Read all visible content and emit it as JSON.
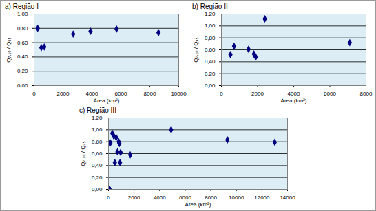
{
  "chart_data": [
    {
      "type": "scatter",
      "title": "a) Região I",
      "xlabel": "Área (km²)",
      "ylabel": "Q₇,₁₀ / Q₉₅",
      "x": [
        250,
        500,
        700,
        2700,
        3900,
        5700,
        8600
      ],
      "values": [
        0.8,
        0.53,
        0.54,
        0.72,
        0.76,
        0.79,
        0.74
      ],
      "color": "#000080",
      "marker": "diamond",
      "grid": "y",
      "xlim": [
        0,
        10000
      ],
      "xticks": [
        0,
        2000,
        4000,
        6000,
        8000,
        10000
      ],
      "ylim": [
        0,
        1
      ],
      "yticks": [
        {
          "value": 0,
          "label": "0,00"
        },
        {
          "value": 0.2,
          "label": "0,20"
        },
        {
          "value": 0.4,
          "label": "0,40"
        },
        {
          "value": 0.6,
          "label": "0,60"
        },
        {
          "value": 0.8,
          "label": "0,80"
        },
        {
          "value": 1,
          "label": "1,00"
        }
      ]
    },
    {
      "type": "scatter",
      "title": "b) Região II",
      "xlabel": "Área (km²)",
      "ylabel": "Q₇,₁₀ / Q₉₅",
      "x": [
        500,
        700,
        1500,
        1800,
        1900,
        2400,
        7100
      ],
      "values": [
        0.52,
        0.66,
        0.61,
        0.53,
        0.48,
        1.12,
        0.72
      ],
      "color": "#000080",
      "marker": "diamond",
      "grid": "y",
      "xlim": [
        0,
        8000
      ],
      "xticks": [
        0,
        2000,
        4000,
        6000,
        8000
      ],
      "ylim": [
        0,
        1.2
      ],
      "yticks": [
        {
          "value": 0,
          "label": "0,00"
        },
        {
          "value": 0.2,
          "label": "0,20"
        },
        {
          "value": 0.4,
          "label": "0,40"
        },
        {
          "value": 0.6,
          "label": "0,60"
        },
        {
          "value": 0.8,
          "label": "0,80"
        },
        {
          "value": 1,
          "label": "1,00"
        },
        {
          "value": 1.2,
          "label": "1,20"
        }
      ]
    },
    {
      "type": "scatter",
      "title": "c) Região III",
      "xlabel": "Área (km²)",
      "ylabel": "Q₇,₁₀ / Q₉₅",
      "x": [
        100,
        150,
        300,
        400,
        500,
        600,
        700,
        800,
        850,
        900,
        950,
        1700,
        4900,
        9300,
        13000
      ],
      "values": [
        0.0,
        0.78,
        0.94,
        0.9,
        0.45,
        0.87,
        0.63,
        0.8,
        0.77,
        0.45,
        0.62,
        0.58,
        1.0,
        0.83,
        0.79
      ],
      "color": "#000080",
      "marker": "diamond",
      "grid": "y",
      "xlim": [
        0,
        14000
      ],
      "xticks": [
        0,
        2000,
        4000,
        6000,
        8000,
        10000,
        12000,
        14000
      ],
      "ylim": [
        0,
        1.2
      ],
      "yticks": [
        {
          "value": 0,
          "label": "0,00"
        },
        {
          "value": 0.2,
          "label": "0,20"
        },
        {
          "value": 0.4,
          "label": "0,40"
        },
        {
          "value": 0.6,
          "label": "0,60"
        },
        {
          "value": 0.8,
          "label": "0,80"
        },
        {
          "value": 1,
          "label": "1,00"
        },
        {
          "value": 1.2,
          "label": "1,20"
        }
      ]
    }
  ]
}
